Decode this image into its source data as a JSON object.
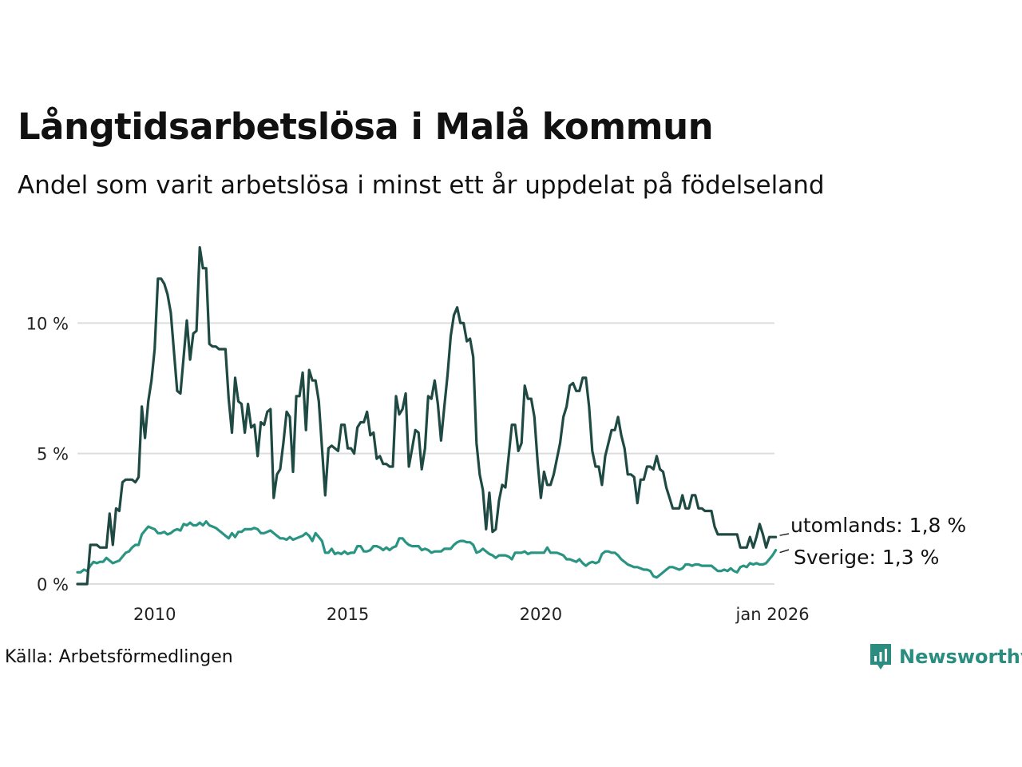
{
  "title": "Långtidsarbetslösa i Malå kommun",
  "subtitle": "Andel som varit arbetslösa i minst ett år uppdelat på födelseland",
  "source": "Källa: Arbetsförmedlingen",
  "brand": "Newsworthy",
  "colors": {
    "utomlands": "#1f4a44",
    "sverige": "#2a9483",
    "grid": "#dddddd",
    "brand": "#2a8d80"
  },
  "chart_data": {
    "type": "line",
    "x_start": 2008.0,
    "x_step": 0.08333,
    "ylim": [
      0,
      13.5
    ],
    "xlim": [
      2008.0,
      2026.05
    ],
    "grid": true,
    "y_ticks": [
      {
        "value": 0,
        "label": "0 %"
      },
      {
        "value": 5,
        "label": "5 %"
      },
      {
        "value": 10,
        "label": "10 %"
      }
    ],
    "x_ticks": [
      {
        "value": 2010,
        "label": "2010"
      },
      {
        "value": 2015,
        "label": "2015"
      },
      {
        "value": 2020,
        "label": "2020"
      },
      {
        "value": 2026.0,
        "label": "jan 2026"
      }
    ],
    "series": [
      {
        "name": "utomlands",
        "end_label": "utomlands: 1,8 %",
        "values": [
          0,
          0,
          0,
          0,
          1.5,
          1.5,
          1.5,
          1.4,
          1.4,
          1.4,
          2.7,
          1.5,
          2.9,
          2.8,
          3.9,
          4.0,
          4.0,
          4.0,
          3.9,
          4.1,
          6.8,
          5.6,
          7.0,
          7.8,
          9.0,
          11.7,
          11.7,
          11.5,
          11.1,
          10.4,
          8.9,
          7.4,
          7.3,
          8.7,
          10.1,
          8.6,
          9.6,
          9.7,
          12.9,
          12.1,
          12.1,
          9.2,
          9.1,
          9.1,
          9.0,
          9.0,
          9.0,
          7.1,
          5.8,
          7.9,
          7.0,
          6.9,
          5.8,
          6.9,
          6.0,
          6.1,
          4.9,
          6.2,
          6.1,
          6.6,
          6.7,
          3.3,
          4.2,
          4.4,
          5.4,
          6.6,
          6.4,
          4.3,
          7.2,
          7.2,
          8.1,
          5.9,
          8.2,
          7.8,
          7.8,
          7.0,
          5.2,
          3.4,
          5.2,
          5.3,
          5.2,
          5.1,
          6.1,
          6.1,
          5.2,
          5.2,
          5.0,
          6.0,
          6.2,
          6.2,
          6.6,
          5.7,
          5.8,
          4.8,
          4.9,
          4.6,
          4.6,
          4.5,
          4.5,
          7.2,
          6.5,
          6.7,
          7.3,
          4.5,
          5.2,
          5.9,
          5.8,
          4.4,
          5.2,
          7.2,
          7.1,
          7.8,
          6.9,
          5.5,
          6.8,
          8.0,
          9.5,
          10.3,
          10.6,
          10.0,
          10.0,
          9.3,
          9.4,
          8.7,
          5.4,
          4.2,
          3.6,
          2.1,
          3.5,
          2.0,
          2.1,
          3.2,
          3.8,
          3.7,
          4.9,
          6.1,
          6.1,
          5.1,
          5.4,
          7.6,
          7.1,
          7.1,
          6.4,
          4.7,
          3.3,
          4.3,
          3.8,
          3.8,
          4.2,
          4.8,
          5.4,
          6.4,
          6.8,
          7.6,
          7.7,
          7.4,
          7.4,
          7.9,
          7.9,
          6.8,
          5.1,
          4.5,
          4.5,
          3.8,
          4.9,
          5.4,
          5.9,
          5.9,
          6.4,
          5.7,
          5.2,
          4.2,
          4.2,
          4.1,
          3.1,
          4.0,
          4.0,
          4.5,
          4.5,
          4.4,
          4.9,
          4.4,
          4.3,
          3.7,
          3.3,
          2.9,
          2.9,
          2.9,
          3.4,
          2.9,
          2.9,
          3.4,
          3.4,
          2.9,
          2.9,
          2.8,
          2.8,
          2.8,
          2.2,
          1.9,
          1.9,
          1.9,
          1.9,
          1.9,
          1.9,
          1.9,
          1.4,
          1.4,
          1.4,
          1.8,
          1.4,
          1.8,
          2.3,
          1.9,
          1.4,
          1.8,
          1.8,
          1.8
        ]
      },
      {
        "name": "sverige",
        "end_label": "Sverige: 1,3 %",
        "values": [
          0.45,
          0.45,
          0.55,
          0.5,
          0.7,
          0.85,
          0.8,
          0.85,
          0.85,
          1.0,
          0.9,
          0.8,
          0.85,
          0.9,
          1.05,
          1.2,
          1.25,
          1.4,
          1.5,
          1.5,
          1.9,
          2.05,
          2.2,
          2.15,
          2.1,
          1.95,
          1.95,
          2.0,
          1.9,
          1.95,
          2.05,
          2.1,
          2.05,
          2.3,
          2.25,
          2.35,
          2.25,
          2.25,
          2.35,
          2.25,
          2.4,
          2.25,
          2.2,
          2.15,
          2.05,
          1.95,
          1.85,
          1.75,
          1.95,
          1.8,
          2.0,
          2.0,
          2.1,
          2.1,
          2.1,
          2.15,
          2.1,
          1.95,
          1.95,
          2.0,
          2.05,
          1.95,
          1.85,
          1.75,
          1.75,
          1.7,
          1.8,
          1.7,
          1.75,
          1.8,
          1.85,
          1.95,
          1.85,
          1.65,
          1.95,
          1.8,
          1.65,
          1.2,
          1.2,
          1.35,
          1.15,
          1.2,
          1.15,
          1.25,
          1.15,
          1.2,
          1.2,
          1.45,
          1.45,
          1.25,
          1.25,
          1.3,
          1.45,
          1.45,
          1.4,
          1.3,
          1.4,
          1.3,
          1.4,
          1.45,
          1.75,
          1.75,
          1.6,
          1.5,
          1.45,
          1.45,
          1.45,
          1.3,
          1.35,
          1.3,
          1.2,
          1.25,
          1.25,
          1.25,
          1.35,
          1.35,
          1.35,
          1.5,
          1.6,
          1.65,
          1.65,
          1.6,
          1.6,
          1.5,
          1.2,
          1.25,
          1.35,
          1.25,
          1.15,
          1.1,
          1.0,
          1.1,
          1.1,
          1.1,
          1.05,
          0.95,
          1.2,
          1.2,
          1.2,
          1.25,
          1.15,
          1.2,
          1.2,
          1.2,
          1.2,
          1.2,
          1.4,
          1.2,
          1.2,
          1.2,
          1.15,
          1.1,
          0.95,
          0.95,
          0.9,
          0.85,
          0.95,
          0.8,
          0.7,
          0.8,
          0.85,
          0.8,
          0.85,
          1.15,
          1.25,
          1.25,
          1.2,
          1.2,
          1.1,
          0.95,
          0.85,
          0.75,
          0.7,
          0.65,
          0.65,
          0.6,
          0.55,
          0.55,
          0.5,
          0.3,
          0.25,
          0.35,
          0.45,
          0.55,
          0.65,
          0.65,
          0.6,
          0.55,
          0.6,
          0.75,
          0.75,
          0.7,
          0.75,
          0.75,
          0.7,
          0.7,
          0.7,
          0.7,
          0.6,
          0.5,
          0.5,
          0.55,
          0.5,
          0.6,
          0.5,
          0.45,
          0.65,
          0.7,
          0.65,
          0.8,
          0.75,
          0.8,
          0.75,
          0.75,
          0.8,
          0.95,
          1.1,
          1.3
        ]
      }
    ]
  }
}
